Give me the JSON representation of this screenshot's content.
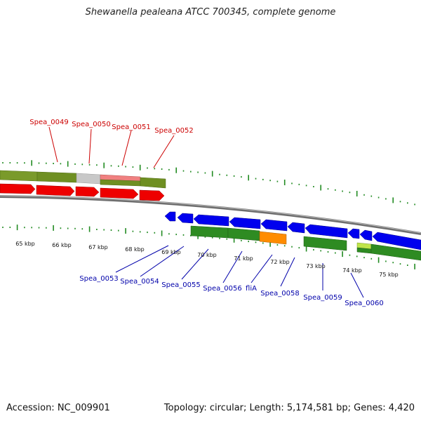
{
  "title": "Shewanella pealeana ATCC 700345, complete genome",
  "footer": {
    "accession": "Accession: NC_009901",
    "summary": "Topology: circular; Length: 5,174,581 bp; Genes: 4,420"
  },
  "kbp_labels": [
    "65 kbp",
    "66 kbp",
    "67 kbp",
    "68 kbp",
    "69 kbp",
    "70 kbp",
    "71 kbp",
    "72 kbp",
    "73 kbp",
    "74 kbp",
    "75 kbp"
  ],
  "colors": {
    "forward_label": "#cc0000",
    "reverse_label": "#0000aa",
    "forward_cds": "#ee0000",
    "reverse_cds": "#0000ee",
    "olive_gene": "#6b8e23",
    "green_gene": "#2e8b22",
    "orange_gene": "#ff8c00",
    "grey_gene": "#c8c8c8",
    "pink_gene": "#f08080",
    "lime_gene": "#bfe54a",
    "tick": "#228b22",
    "backbone": "#888888"
  },
  "forward_genes": [
    "Spea_0049",
    "Spea_0050",
    "Spea_0051",
    "Spea_0052"
  ],
  "reverse_genes": [
    "Spea_0053",
    "Spea_0054",
    "Spea_0055",
    "Spea_0056",
    "fliA",
    "Spea_0058",
    "Spea_0059",
    "Spea_0060"
  ]
}
